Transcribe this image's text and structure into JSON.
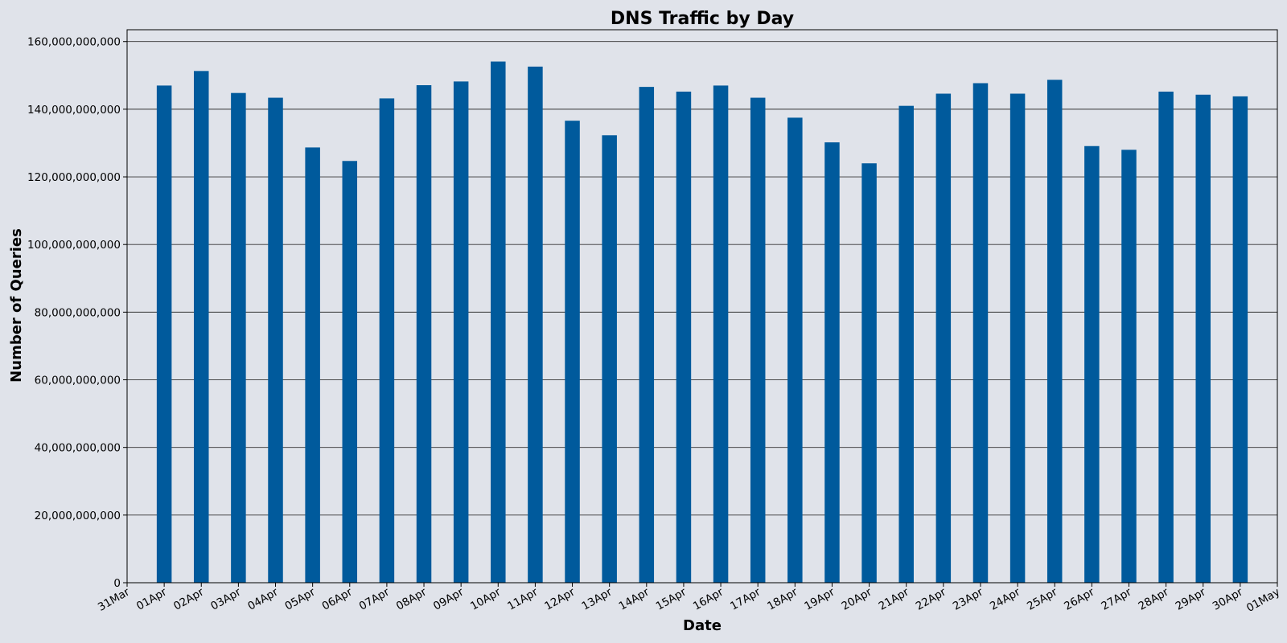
{
  "chart_data": {
    "type": "bar",
    "title": "DNS Traffic by Day",
    "xlabel": "Date",
    "ylabel": "Number of Queries",
    "ylim": [
      0,
      160000000000
    ],
    "yticks": [
      0,
      20000000000,
      40000000000,
      60000000000,
      80000000000,
      100000000000,
      120000000000,
      140000000000,
      160000000000
    ],
    "ytick_labels": [
      "0",
      "20,000,000,000",
      "40,000,000,000",
      "60,000,000,000",
      "80,000,000,000",
      "100,000,000,000",
      "120,000,000,000",
      "140,000,000,000",
      "160,000,000,000"
    ],
    "xtick_labels": [
      "31Mar",
      "01Apr",
      "02Apr",
      "03Apr",
      "04Apr",
      "05Apr",
      "06Apr",
      "07Apr",
      "08Apr",
      "09Apr",
      "10Apr",
      "11Apr",
      "12Apr",
      "13Apr",
      "14Apr",
      "15Apr",
      "16Apr",
      "17Apr",
      "18Apr",
      "19Apr",
      "20Apr",
      "21Apr",
      "22Apr",
      "23Apr",
      "24Apr",
      "25Apr",
      "26Apr",
      "27Apr",
      "28Apr",
      "29Apr",
      "30Apr",
      "01May"
    ],
    "categories": [
      "01Apr",
      "02Apr",
      "03Apr",
      "04Apr",
      "05Apr",
      "06Apr",
      "07Apr",
      "08Apr",
      "09Apr",
      "10Apr",
      "11Apr",
      "12Apr",
      "13Apr",
      "14Apr",
      "15Apr",
      "16Apr",
      "17Apr",
      "18Apr",
      "19Apr",
      "20Apr",
      "21Apr",
      "22Apr",
      "23Apr",
      "24Apr",
      "25Apr",
      "26Apr",
      "27Apr",
      "28Apr",
      "29Apr",
      "30Apr"
    ],
    "values": [
      147000000000,
      151300000000,
      144800000000,
      143400000000,
      128700000000,
      124700000000,
      143200000000,
      147100000000,
      148200000000,
      154100000000,
      152600000000,
      136600000000,
      132300000000,
      146600000000,
      145200000000,
      147000000000,
      143400000000,
      137500000000,
      130200000000,
      124000000000,
      141000000000,
      144600000000,
      147700000000,
      144600000000,
      148700000000,
      129100000000,
      128000000000,
      145200000000,
      144300000000,
      143800000000
    ],
    "bar_color": "#005a9c",
    "background_color": "#e0e3ea",
    "grid": true
  }
}
